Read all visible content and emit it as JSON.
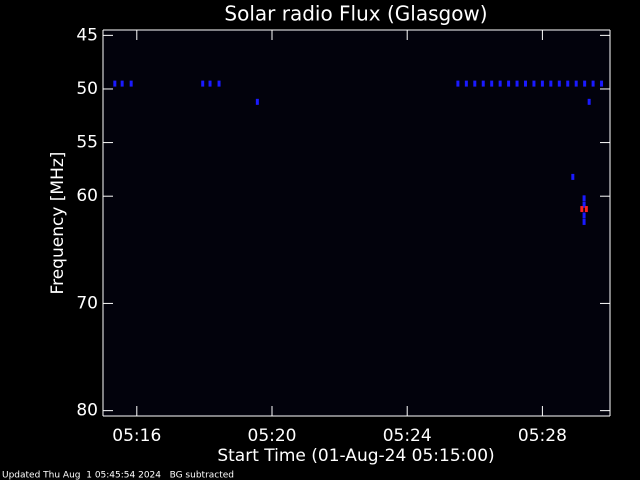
{
  "chart_data": {
    "type": "spectrogram",
    "title": "Solar radio Flux (Glasgow)",
    "xlabel": "Start Time (01-Aug-24 05:15:00)",
    "ylabel": "Frequency [MHz]",
    "footer": "Updated Thu Aug  1 05:45:54 2024   BG subtracted",
    "xlim": [
      "05:15:00",
      "05:30:00"
    ],
    "xticks": [
      "05:16",
      "05:20",
      "05:24",
      "05:28"
    ],
    "ylim": [
      44.5,
      80.5
    ],
    "y_inverted": true,
    "yticks": [
      45,
      50,
      55,
      60,
      70,
      80
    ],
    "series": [
      {
        "color": "#1a1aff",
        "x": [
          "05:15:21",
          "05:15:34",
          "05:15:50",
          "05:17:57",
          "05:18:10",
          "05:18:26",
          "05:25:30",
          "05:25:45",
          "05:26:00",
          "05:26:15",
          "05:26:30",
          "05:26:45",
          "05:27:00",
          "05:27:15",
          "05:27:30",
          "05:27:45",
          "05:28:00",
          "05:28:15",
          "05:28:30",
          "05:28:45",
          "05:29:00",
          "05:29:15",
          "05:29:30",
          "05:29:45"
        ],
        "y": [
          49.5,
          49.5,
          49.5,
          49.5,
          49.5,
          49.5,
          49.5,
          49.5,
          49.5,
          49.5,
          49.5,
          49.5,
          49.5,
          49.5,
          49.5,
          49.5,
          49.5,
          49.5,
          49.5,
          49.5,
          49.5,
          49.5,
          49.5,
          49.5
        ]
      },
      {
        "color": "#1a1aff",
        "x": [
          "05:19:34",
          "05:29:23",
          "05:28:54",
          "05:29:14",
          "05:29:14",
          "05:29:14",
          "05:29:14"
        ],
        "y": [
          51.2,
          51.2,
          58.2,
          60.2,
          60.8,
          61.8,
          62.4
        ]
      },
      {
        "color": "#ff2020",
        "x": [
          "05:29:10",
          "05:29:18"
        ],
        "y": [
          61.2,
          61.2
        ]
      }
    ]
  }
}
